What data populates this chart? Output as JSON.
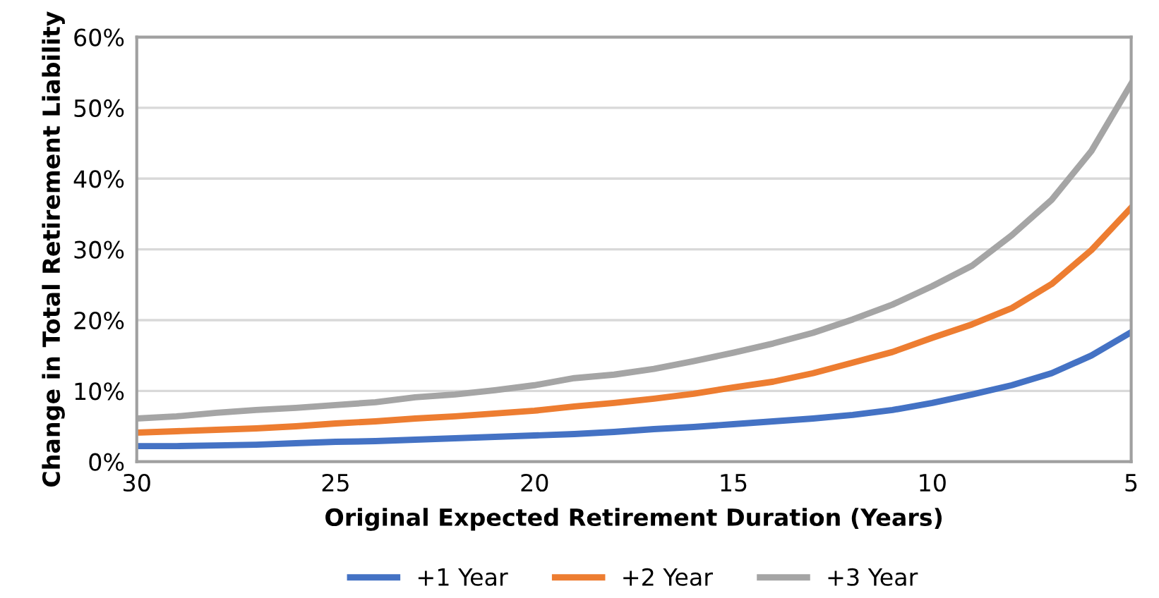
{
  "chart_data": {
    "type": "line",
    "xlabel": "Original Expected Retirement Duration (Years)",
    "ylabel": "Change in Total Retirement Liability",
    "x": [
      30,
      29,
      28,
      27,
      26,
      25,
      24,
      23,
      22,
      21,
      20,
      19,
      18,
      17,
      16,
      15,
      14,
      13,
      12,
      11,
      10,
      9,
      8,
      7,
      6,
      5
    ],
    "series": [
      {
        "name": "+1 Year",
        "color": "#4472c4",
        "values": [
          2.2,
          2.2,
          2.3,
          2.4,
          2.6,
          2.8,
          2.9,
          3.1,
          3.3,
          3.5,
          3.7,
          3.9,
          4.2,
          4.6,
          4.9,
          5.3,
          5.7,
          6.1,
          6.6,
          7.3,
          8.3,
          9.5,
          10.8,
          12.5,
          15.0,
          18.3
        ]
      },
      {
        "name": "+2 Year",
        "color": "#ed7d31",
        "values": [
          4.1,
          4.3,
          4.5,
          4.7,
          5.0,
          5.4,
          5.7,
          6.1,
          6.4,
          6.8,
          7.2,
          7.8,
          8.3,
          8.9,
          9.6,
          10.5,
          11.3,
          12.5,
          14.0,
          15.5,
          17.5,
          19.4,
          21.7,
          25.1,
          29.9,
          35.9
        ]
      },
      {
        "name": "+3 Year",
        "color": "#a5a5a5",
        "values": [
          6.1,
          6.4,
          6.9,
          7.3,
          7.6,
          8.0,
          8.4,
          9.1,
          9.5,
          10.1,
          10.8,
          11.8,
          12.3,
          13.1,
          14.2,
          15.4,
          16.7,
          18.2,
          20.1,
          22.2,
          24.8,
          27.7,
          32.0,
          37.0,
          43.9,
          53.4
        ]
      }
    ],
    "xlim": [
      30,
      5
    ],
    "xticks": [
      30,
      25,
      20,
      15,
      10,
      5
    ],
    "ylim": [
      0,
      60
    ],
    "yticks": [
      {
        "value": 0,
        "label": "0%"
      },
      {
        "value": 10,
        "label": "10%"
      },
      {
        "value": 20,
        "label": "20%"
      },
      {
        "value": 30,
        "label": "30%"
      },
      {
        "value": 40,
        "label": "40%"
      },
      {
        "value": 50,
        "label": "50%"
      },
      {
        "value": 60,
        "label": "60%"
      }
    ],
    "grid": "y",
    "legend": "bottom",
    "marker": "none",
    "line_style": "solid"
  }
}
